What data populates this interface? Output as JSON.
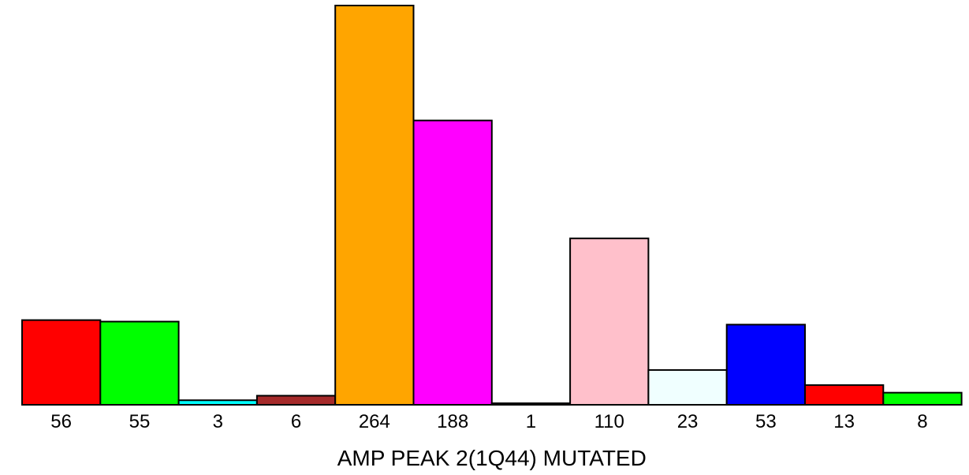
{
  "chart_data": {
    "type": "bar",
    "categories": [
      "56",
      "55",
      "3",
      "6",
      "264",
      "188",
      "1",
      "110",
      "23",
      "53",
      "13",
      "8"
    ],
    "values": [
      56,
      55,
      3,
      6,
      264,
      188,
      1,
      110,
      23,
      53,
      13,
      8
    ],
    "colors": [
      "#ff0000",
      "#00ff00",
      "#00ffff",
      "#a52a2a",
      "#ffa500",
      "#ff00ff",
      "#000000",
      "#ffc0cb",
      "#f0ffff",
      "#0000ff",
      "#ff0000",
      "#00ff00"
    ],
    "xlabel": "AMP PEAK  2(1Q44) MUTATED",
    "ylabel": "",
    "ylim": [
      0,
      264
    ],
    "grid": false,
    "legend": "none"
  }
}
